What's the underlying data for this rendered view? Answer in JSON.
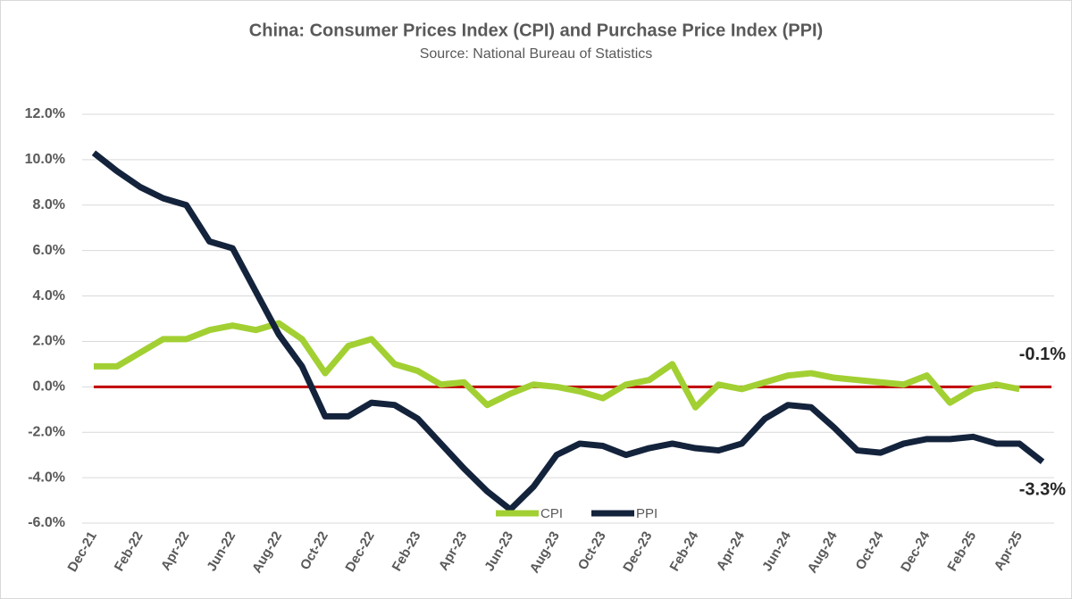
{
  "chart_data": {
    "type": "line",
    "title": "China: Consumer Prices Index (CPI) and Purchase Price Index (PPI)",
    "subtitle": "Source: National Bureau of Statistics",
    "categories": [
      "Dec-21",
      null,
      "Feb-22",
      null,
      "Apr-22",
      null,
      "Jun-22",
      null,
      "Aug-22",
      null,
      "Oct-22",
      null,
      "Dec-22",
      null,
      "Feb-23",
      null,
      "Apr-23",
      null,
      "Jun-23",
      null,
      "Aug-23",
      null,
      "Oct-23",
      null,
      "Dec-23",
      null,
      "Feb-24",
      null,
      "Apr-24",
      null,
      "Jun-24",
      null,
      "Aug-24",
      null,
      "Oct-24",
      null,
      "Dec-24",
      null,
      "Feb-25",
      null,
      "Apr-25",
      null
    ],
    "series": [
      {
        "name": "CPI",
        "color": "#a2d033",
        "values": [
          0.9,
          0.9,
          1.5,
          2.1,
          2.1,
          2.5,
          2.7,
          2.5,
          2.8,
          2.1,
          0.6,
          1.8,
          2.1,
          1.0,
          0.7,
          0.1,
          0.2,
          -0.8,
          -0.3,
          0.1,
          0.0,
          -0.2,
          -0.5,
          0.1,
          0.3,
          1.0,
          -0.9,
          0.1,
          -0.1,
          0.2,
          0.5,
          0.6,
          0.4,
          0.3,
          0.2,
          0.1,
          0.5,
          -0.7,
          -0.1,
          0.1,
          -0.1,
          null
        ],
        "value_labels": [
          null,
          null,
          null,
          null,
          null,
          null,
          null,
          null,
          null,
          null,
          null,
          null,
          null,
          null,
          null,
          null,
          null,
          null,
          null,
          null,
          null,
          null,
          null,
          null,
          null,
          null,
          null,
          null,
          null,
          null,
          null,
          null,
          null,
          null,
          null,
          null,
          null,
          null,
          null,
          null,
          "-0.1%",
          null
        ]
      },
      {
        "name": "PPI",
        "color": "#14233c",
        "values": [
          10.3,
          9.5,
          8.8,
          8.3,
          8.0,
          6.4,
          6.1,
          4.2,
          2.3,
          0.9,
          -1.3,
          -1.3,
          -0.7,
          -0.8,
          -1.4,
          -2.5,
          -3.6,
          -4.6,
          -5.4,
          -4.4,
          -3.0,
          -2.5,
          -2.6,
          -3.0,
          -2.7,
          -2.5,
          -2.7,
          -2.8,
          -2.5,
          -1.4,
          -0.8,
          -0.9,
          -1.8,
          -2.8,
          -2.9,
          -2.5,
          -2.3,
          -2.3,
          -2.2,
          -2.5,
          -2.5,
          -3.3
        ],
        "value_labels": [
          null,
          null,
          null,
          null,
          null,
          null,
          null,
          null,
          null,
          null,
          null,
          null,
          null,
          null,
          null,
          null,
          null,
          null,
          null,
          null,
          null,
          null,
          null,
          null,
          null,
          null,
          null,
          null,
          null,
          null,
          null,
          null,
          null,
          null,
          null,
          null,
          null,
          null,
          null,
          null,
          null,
          "-3.3%"
        ]
      }
    ],
    "ylim": [
      -6,
      12
    ],
    "yticks": [
      {
        "value": -6,
        "label": "-6.0%"
      },
      {
        "value": -4,
        "label": "-4.0%"
      },
      {
        "value": -2,
        "label": "-2.0%"
      },
      {
        "value": 0,
        "label": "0.0%"
      },
      {
        "value": 2,
        "label": "2.0%"
      },
      {
        "value": 4,
        "label": "4.0%"
      },
      {
        "value": 6,
        "label": "6.0%"
      },
      {
        "value": 8,
        "label": "8.0%"
      },
      {
        "value": 10,
        "label": "10.0%"
      },
      {
        "value": 12,
        "label": "12.0%"
      }
    ],
    "grid": true,
    "reference_line": {
      "y": 0,
      "color": "#c00000"
    },
    "legend": "bottom"
  }
}
